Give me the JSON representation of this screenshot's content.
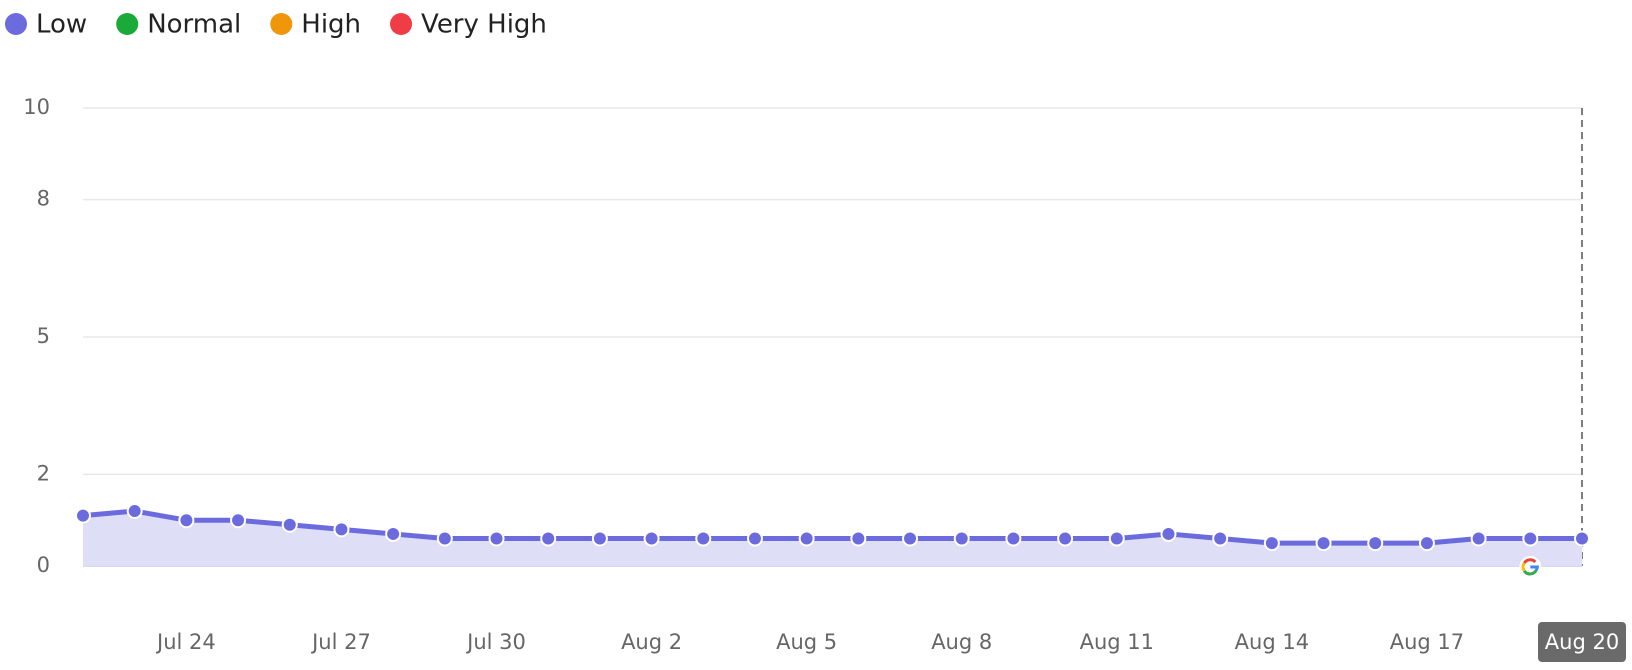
{
  "chart_data": {
    "type": "line",
    "legend": [
      {
        "label": "Low",
        "color": "#6b6bde"
      },
      {
        "label": "Normal",
        "color": "#1aaa3a"
      },
      {
        "label": "High",
        "color": "#f0960a"
      },
      {
        "label": "Very High",
        "color": "#f03c46"
      }
    ],
    "categories": [
      null,
      null,
      "Jul 24",
      null,
      null,
      "Jul 27",
      null,
      null,
      "Jul 30",
      null,
      null,
      "Aug 2",
      null,
      null,
      "Aug 5",
      null,
      null,
      "Aug 8",
      null,
      null,
      "Aug 11",
      null,
      null,
      "Aug 14",
      null,
      null,
      "Aug 17",
      null,
      null,
      "Aug 20"
    ],
    "series": [
      {
        "color": "#6b6bde",
        "fill": "#dedef7",
        "values": [
          1.1,
          1.2,
          1.0,
          1.0,
          0.9,
          0.8,
          0.7,
          0.6,
          0.6,
          0.6,
          0.6,
          0.6,
          0.6,
          0.6,
          0.6,
          0.6,
          0.6,
          0.6,
          0.6,
          0.6,
          0.6,
          0.7,
          0.6,
          0.5,
          0.5,
          0.5,
          0.5,
          0.6,
          0.6,
          0.6
        ]
      }
    ],
    "ylim": [
      0,
      10
    ],
    "yticks": [
      0,
      2,
      5,
      8,
      10
    ],
    "grid": true
  }
}
